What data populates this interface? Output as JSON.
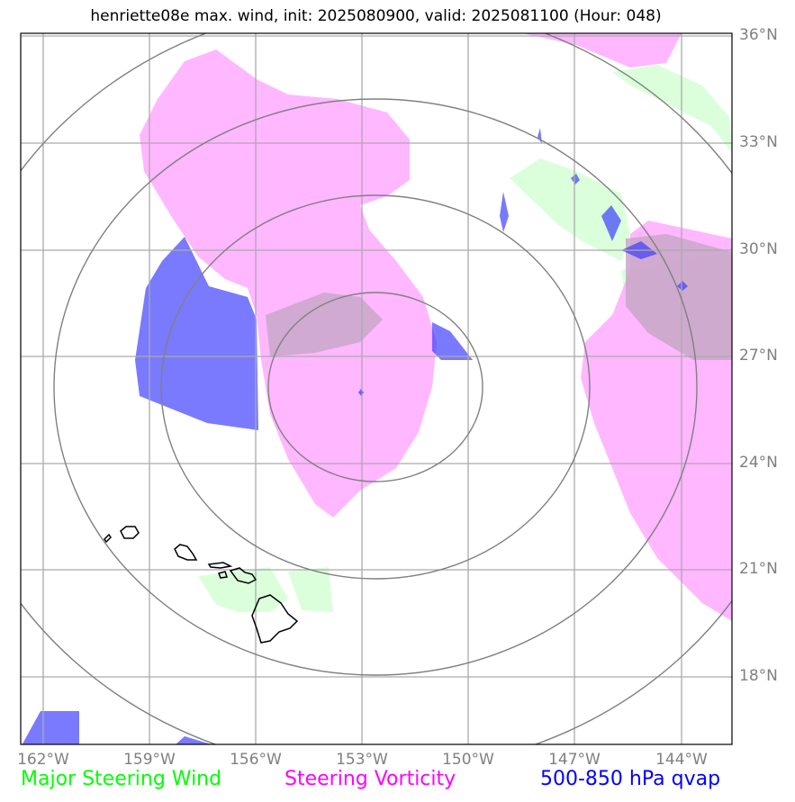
{
  "title": "henriette08e max. wind, init: 2025080900, valid: 2025081100 (Hour: 048)",
  "map": {
    "lat_labels": [
      "36°N",
      "33°N",
      "30°N",
      "27°N",
      "24°N",
      "21°N",
      "18°N"
    ],
    "lon_labels": [
      "162°W",
      "159°W",
      "156°W",
      "153°W",
      "150°W",
      "147°W",
      "144°W"
    ],
    "storm_center": {
      "lon": -153,
      "lat": 26
    },
    "range_rings": 4,
    "colors": {
      "steering_wind": "#ccffcc",
      "steering_vorticity": "#ff99ff",
      "qvap": "#3333ff",
      "gridlines": "#aaaaaa",
      "rings": "#808080",
      "coastline": "#000000"
    }
  },
  "legend": {
    "steering_wind": {
      "label": "Major Steering Wind",
      "color": "#00ff00"
    },
    "steering_vorticity": {
      "label": "Steering Vorticity",
      "color": "#ff00ff"
    },
    "qvap": {
      "label": "500-850 hPa qvap",
      "color": "#0000ff"
    }
  }
}
